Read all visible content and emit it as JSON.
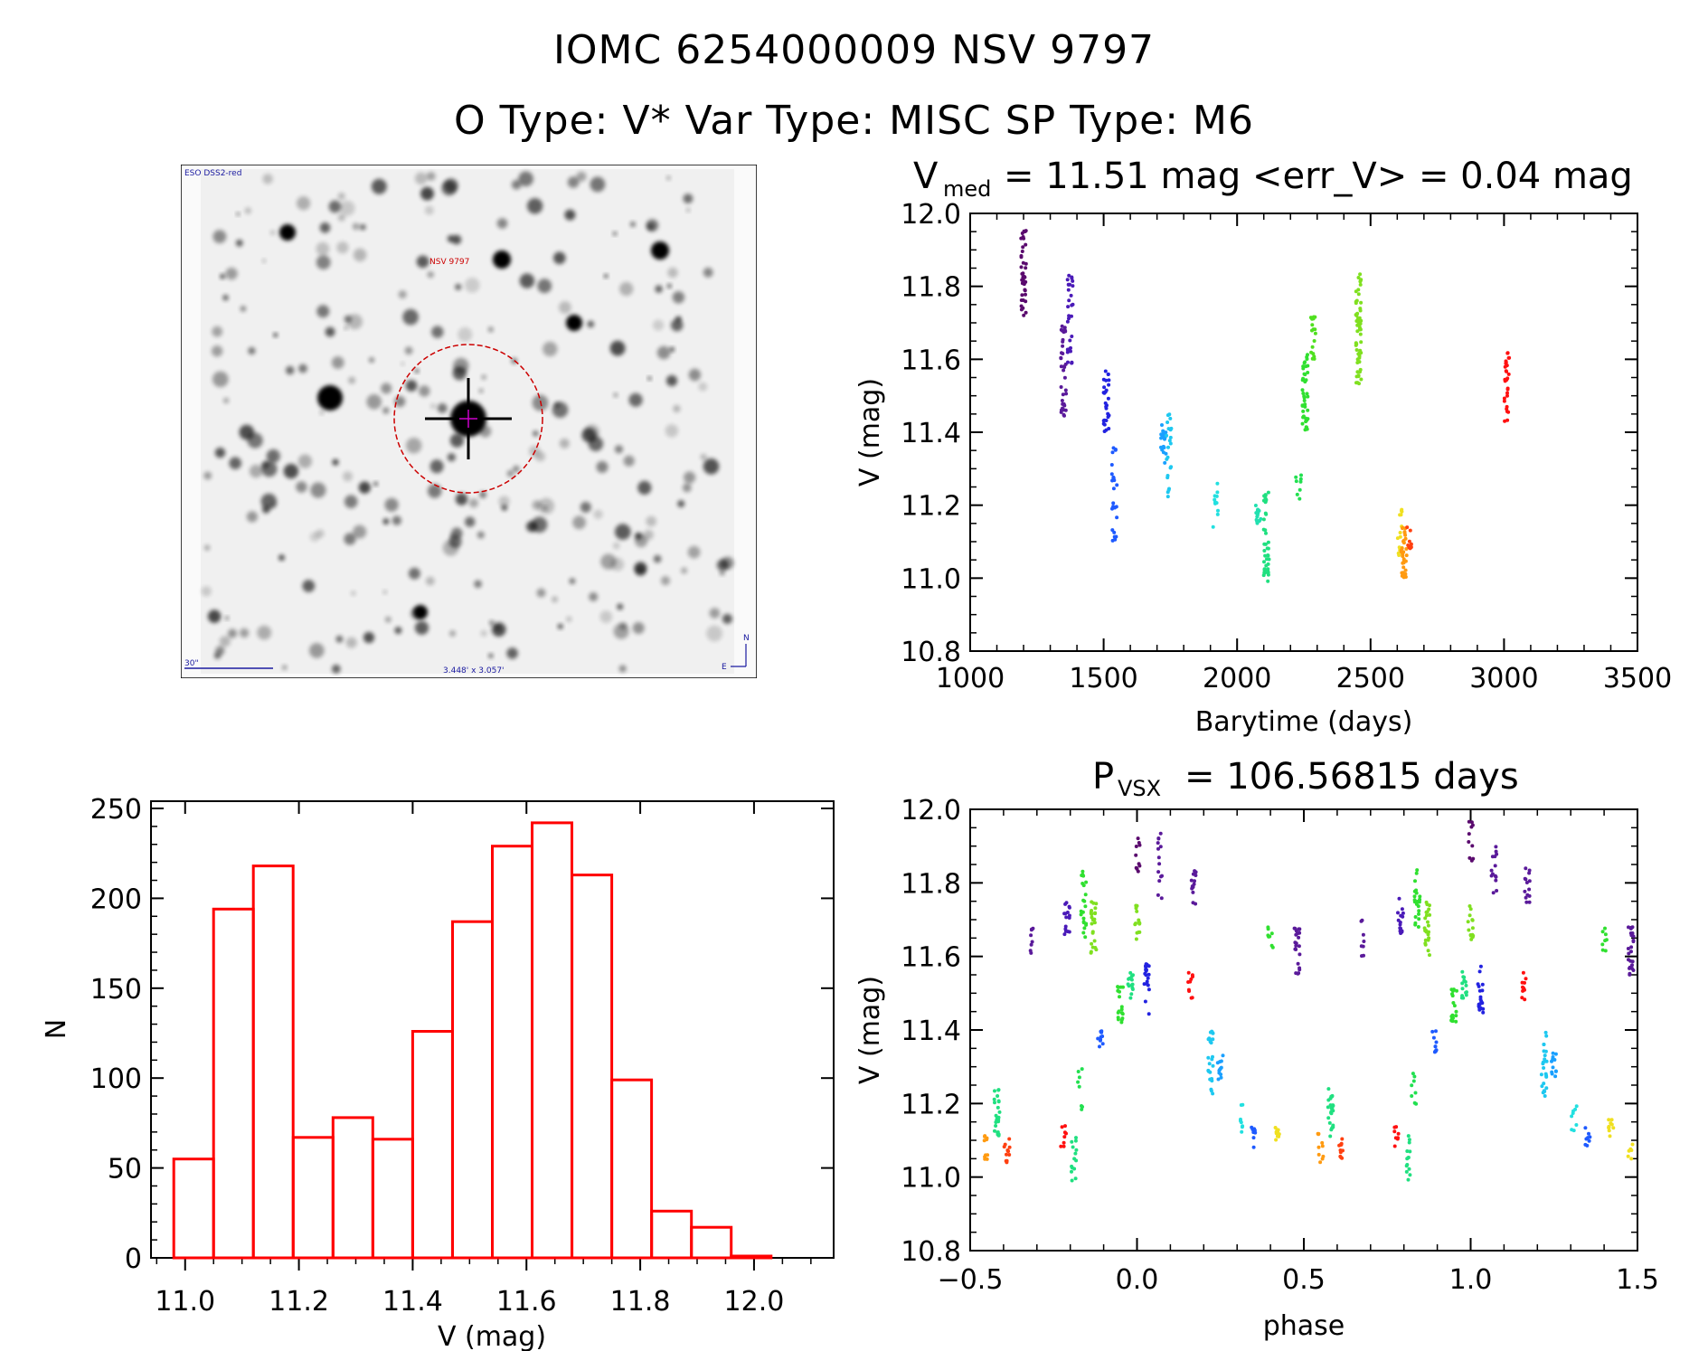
{
  "header": {
    "line1": "IOMC 6254000009    NSV  9797",
    "line2": "O Type: V*  Var Type: MISC  SP Type: M6"
  },
  "image_panel": {
    "survey_label": "ESO DSS2-red",
    "star_label": "NSV 9797",
    "scale_label": "30\"",
    "fov_label": "3.448' x 3.057'",
    "compass_n": "N",
    "compass_e": "E"
  },
  "colors": {
    "histogram": "#ff0000",
    "axes": "#000000",
    "marker": "#cc0000"
  },
  "chart_data": [
    {
      "id": "lightcurve",
      "type": "scatter",
      "title_main": "V",
      "title_sub": "med",
      "title_rest": "= 11.51 mag <err_V> = 0.04 mag",
      "xlabel": "Barytime (days)",
      "ylabel": "V (mag)",
      "xlim": [
        1000,
        3500
      ],
      "ylim": [
        12.0,
        10.8
      ],
      "xticks": [
        "1000",
        "1500",
        "2000",
        "2500",
        "3000",
        "3500"
      ],
      "xtick_values": [
        1000,
        1500,
        2000,
        2500,
        3000,
        3500
      ],
      "yticks": [
        "10.8",
        "11.0",
        "11.2",
        "11.4",
        "11.6",
        "11.8",
        "12.0"
      ],
      "ytick_values": [
        10.8,
        11.0,
        11.2,
        11.4,
        11.6,
        11.8,
        12.0
      ],
      "clusters": [
        {
          "x": 1200,
          "ymin": 11.72,
          "ymax": 11.96,
          "color": "#5a0a6e",
          "n": 40
        },
        {
          "x": 1350,
          "ymin": 11.44,
          "ymax": 11.7,
          "color": "#5a1a9a",
          "n": 36
        },
        {
          "x": 1375,
          "ymin": 11.58,
          "ymax": 11.85,
          "color": "#4a1ab8",
          "n": 30
        },
        {
          "x": 1510,
          "ymin": 11.4,
          "ymax": 11.57,
          "color": "#2222e0",
          "n": 28
        },
        {
          "x": 1540,
          "ymin": 11.08,
          "ymax": 11.36,
          "color": "#1e5aff",
          "n": 26
        },
        {
          "x": 1725,
          "ymin": 11.3,
          "ymax": 11.42,
          "color": "#1aa0ff",
          "n": 22
        },
        {
          "x": 1745,
          "ymin": 11.22,
          "ymax": 11.45,
          "color": "#1ec8f0",
          "n": 22
        },
        {
          "x": 1920,
          "ymin": 11.14,
          "ymax": 11.26,
          "color": "#22e0e0",
          "n": 12
        },
        {
          "x": 2080,
          "ymin": 11.14,
          "ymax": 11.2,
          "color": "#22e0b0",
          "n": 14
        },
        {
          "x": 2110,
          "ymin": 10.98,
          "ymax": 11.24,
          "color": "#20e080",
          "n": 40
        },
        {
          "x": 2230,
          "ymin": 11.2,
          "ymax": 11.3,
          "color": "#22e050",
          "n": 8
        },
        {
          "x": 2255,
          "ymin": 11.4,
          "ymax": 11.62,
          "color": "#30e030",
          "n": 40
        },
        {
          "x": 2285,
          "ymin": 11.58,
          "ymax": 11.72,
          "color": "#50e020",
          "n": 18
        },
        {
          "x": 2455,
          "ymin": 11.53,
          "ymax": 11.84,
          "color": "#80e020",
          "n": 60
        },
        {
          "x": 2610,
          "ymin": 11.04,
          "ymax": 11.2,
          "color": "#f0e020",
          "n": 14
        },
        {
          "x": 2625,
          "ymin": 11.0,
          "ymax": 11.14,
          "color": "#ff9a10",
          "n": 34
        },
        {
          "x": 2645,
          "ymin": 11.08,
          "ymax": 11.14,
          "color": "#ff4010",
          "n": 10
        },
        {
          "x": 3010,
          "ymin": 11.43,
          "ymax": 11.64,
          "color": "#ff1010",
          "n": 28
        }
      ]
    },
    {
      "id": "histogram",
      "type": "bar",
      "xlabel": "V (mag)",
      "ylabel": "N",
      "xlim": [
        10.94,
        12.14
      ],
      "ylim": [
        0,
        250
      ],
      "xticks": [
        "11.0",
        "11.2",
        "11.4",
        "11.6",
        "11.8",
        "12.0"
      ],
      "xtick_values": [
        11.0,
        11.2,
        11.4,
        11.6,
        11.8,
        12.0
      ],
      "yticks": [
        "0",
        "50",
        "100",
        "150",
        "200",
        "250"
      ],
      "ytick_values": [
        0,
        50,
        100,
        150,
        200,
        250
      ],
      "bin_edges": [
        10.98,
        11.05,
        11.12,
        11.19,
        11.26,
        11.33,
        11.4,
        11.47,
        11.54,
        11.61,
        11.68,
        11.75,
        11.82,
        11.89,
        11.96,
        12.03
      ],
      "values": [
        55,
        194,
        218,
        67,
        78,
        66,
        126,
        187,
        229,
        242,
        213,
        99,
        26,
        17,
        1
      ]
    },
    {
      "id": "phased",
      "type": "scatter",
      "title_main": "P",
      "title_sub": "VSX",
      "title_rest": "= 106.56815 days",
      "xlabel": "phase",
      "ylabel": "V (mag)",
      "xlim": [
        -0.5,
        1.5
      ],
      "ylim": [
        12.0,
        10.8
      ],
      "xticks": [
        "−0.5",
        "0.0",
        "0.5",
        "1.0",
        "1.5"
      ],
      "xtick_values": [
        -0.5,
        0.0,
        0.5,
        1.0,
        1.5
      ],
      "yticks": [
        "10.8",
        "11.0",
        "11.2",
        "11.4",
        "11.6",
        "11.8",
        "12.0"
      ],
      "ytick_values": [
        10.8,
        11.0,
        11.2,
        11.4,
        11.6,
        11.8,
        12.0
      ],
      "clusters": [
        {
          "x": -0.45,
          "ymin": 11.04,
          "ymax": 11.12,
          "color": "#ff9a10",
          "n": 10
        },
        {
          "x": -0.42,
          "ymin": 11.1,
          "ymax": 11.24,
          "color": "#20e080",
          "n": 24
        },
        {
          "x": -0.39,
          "ymin": 11.04,
          "ymax": 11.12,
          "color": "#ff4010",
          "n": 12
        },
        {
          "x": -0.32,
          "ymin": 11.6,
          "ymax": 11.7,
          "color": "#5a1a9a",
          "n": 8
        },
        {
          "x": -0.22,
          "ymin": 11.08,
          "ymax": 11.14,
          "color": "#ff1010",
          "n": 8
        },
        {
          "x": -0.21,
          "ymin": 11.66,
          "ymax": 11.76,
          "color": "#4a1ab8",
          "n": 16
        },
        {
          "x": -0.19,
          "ymin": 10.98,
          "ymax": 11.12,
          "color": "#20e080",
          "n": 14
        },
        {
          "x": -0.17,
          "ymin": 11.18,
          "ymax": 11.3,
          "color": "#22e050",
          "n": 8
        },
        {
          "x": -0.16,
          "ymin": 11.65,
          "ymax": 11.84,
          "color": "#30e030",
          "n": 22
        },
        {
          "x": -0.13,
          "ymin": 11.6,
          "ymax": 11.75,
          "color": "#80e020",
          "n": 24
        },
        {
          "x": -0.11,
          "ymin": 11.34,
          "ymax": 11.4,
          "color": "#1e5aff",
          "n": 10
        },
        {
          "x": -0.05,
          "ymin": 11.42,
          "ymax": 11.52,
          "color": "#30e030",
          "n": 18
        },
        {
          "x": -0.02,
          "ymin": 11.48,
          "ymax": 11.56,
          "color": "#20e080",
          "n": 14
        },
        {
          "x": 0.0,
          "ymin": 11.82,
          "ymax": 11.98,
          "color": "#5a0a6e",
          "n": 10
        },
        {
          "x": 0.0,
          "ymin": 11.64,
          "ymax": 11.74,
          "color": "#80e020",
          "n": 14
        },
        {
          "x": 0.03,
          "ymin": 11.44,
          "ymax": 11.58,
          "color": "#2222e0",
          "n": 20
        },
        {
          "x": 0.07,
          "ymin": 11.74,
          "ymax": 11.94,
          "color": "#5a1a9a",
          "n": 14
        },
        {
          "x": 0.16,
          "ymin": 11.48,
          "ymax": 11.56,
          "color": "#ff1010",
          "n": 10
        },
        {
          "x": 0.17,
          "ymin": 11.74,
          "ymax": 11.84,
          "color": "#5a1a9a",
          "n": 14
        },
        {
          "x": 0.22,
          "ymin": 11.22,
          "ymax": 11.4,
          "color": "#1ec8f0",
          "n": 24
        },
        {
          "x": 0.25,
          "ymin": 11.26,
          "ymax": 11.34,
          "color": "#1aa0ff",
          "n": 12
        },
        {
          "x": 0.31,
          "ymin": 11.12,
          "ymax": 11.2,
          "color": "#22e0e0",
          "n": 8
        },
        {
          "x": 0.35,
          "ymin": 11.08,
          "ymax": 11.14,
          "color": "#1e5aff",
          "n": 8
        },
        {
          "x": 0.4,
          "ymin": 11.6,
          "ymax": 11.68,
          "color": "#30e030",
          "n": 8
        },
        {
          "x": 0.42,
          "ymin": 11.1,
          "ymax": 11.16,
          "color": "#f0e020",
          "n": 10
        },
        {
          "x": 0.48,
          "ymin": 11.55,
          "ymax": 11.68,
          "color": "#5a1a9a",
          "n": 24
        },
        {
          "x": 0.55,
          "ymin": 11.04,
          "ymax": 11.12,
          "color": "#ff9a10",
          "n": 10
        },
        {
          "x": 0.58,
          "ymin": 11.1,
          "ymax": 11.24,
          "color": "#20e080",
          "n": 24
        },
        {
          "x": 0.61,
          "ymin": 11.04,
          "ymax": 11.12,
          "color": "#ff4010",
          "n": 12
        },
        {
          "x": 0.68,
          "ymin": 11.6,
          "ymax": 11.7,
          "color": "#5a1a9a",
          "n": 8
        },
        {
          "x": 0.78,
          "ymin": 11.08,
          "ymax": 11.14,
          "color": "#ff1010",
          "n": 8
        },
        {
          "x": 0.79,
          "ymin": 11.66,
          "ymax": 11.76,
          "color": "#4a1ab8",
          "n": 16
        },
        {
          "x": 0.81,
          "ymin": 10.98,
          "ymax": 11.12,
          "color": "#20e080",
          "n": 14
        },
        {
          "x": 0.83,
          "ymin": 11.18,
          "ymax": 11.3,
          "color": "#22e050",
          "n": 8
        },
        {
          "x": 0.84,
          "ymin": 11.65,
          "ymax": 11.84,
          "color": "#30e030",
          "n": 22
        },
        {
          "x": 0.87,
          "ymin": 11.6,
          "ymax": 11.75,
          "color": "#80e020",
          "n": 24
        },
        {
          "x": 0.89,
          "ymin": 11.34,
          "ymax": 11.4,
          "color": "#1e5aff",
          "n": 10
        },
        {
          "x": 0.95,
          "ymin": 11.42,
          "ymax": 11.52,
          "color": "#30e030",
          "n": 18
        },
        {
          "x": 0.98,
          "ymin": 11.48,
          "ymax": 11.56,
          "color": "#20e080",
          "n": 14
        },
        {
          "x": 1.0,
          "ymin": 11.82,
          "ymax": 11.98,
          "color": "#5a0a6e",
          "n": 10
        },
        {
          "x": 1.0,
          "ymin": 11.64,
          "ymax": 11.74,
          "color": "#80e020",
          "n": 14
        },
        {
          "x": 1.03,
          "ymin": 11.44,
          "ymax": 11.58,
          "color": "#2222e0",
          "n": 20
        },
        {
          "x": 1.07,
          "ymin": 11.74,
          "ymax": 11.94,
          "color": "#5a1a9a",
          "n": 14
        },
        {
          "x": 1.16,
          "ymin": 11.48,
          "ymax": 11.56,
          "color": "#ff1010",
          "n": 10
        },
        {
          "x": 1.17,
          "ymin": 11.74,
          "ymax": 11.84,
          "color": "#5a1a9a",
          "n": 14
        },
        {
          "x": 1.22,
          "ymin": 11.22,
          "ymax": 11.4,
          "color": "#1ec8f0",
          "n": 24
        },
        {
          "x": 1.25,
          "ymin": 11.26,
          "ymax": 11.34,
          "color": "#1aa0ff",
          "n": 12
        },
        {
          "x": 1.31,
          "ymin": 11.12,
          "ymax": 11.2,
          "color": "#22e0e0",
          "n": 8
        },
        {
          "x": 1.35,
          "ymin": 11.08,
          "ymax": 11.14,
          "color": "#1e5aff",
          "n": 8
        },
        {
          "x": 1.4,
          "ymin": 11.6,
          "ymax": 11.68,
          "color": "#30e030",
          "n": 8
        },
        {
          "x": 1.42,
          "ymin": 11.1,
          "ymax": 11.16,
          "color": "#f0e020",
          "n": 10
        },
        {
          "x": 1.48,
          "ymin": 11.55,
          "ymax": 11.68,
          "color": "#5a1a9a",
          "n": 24
        },
        {
          "x": 1.48,
          "ymin": 11.04,
          "ymax": 11.1,
          "color": "#f0e020",
          "n": 6
        }
      ]
    }
  ]
}
